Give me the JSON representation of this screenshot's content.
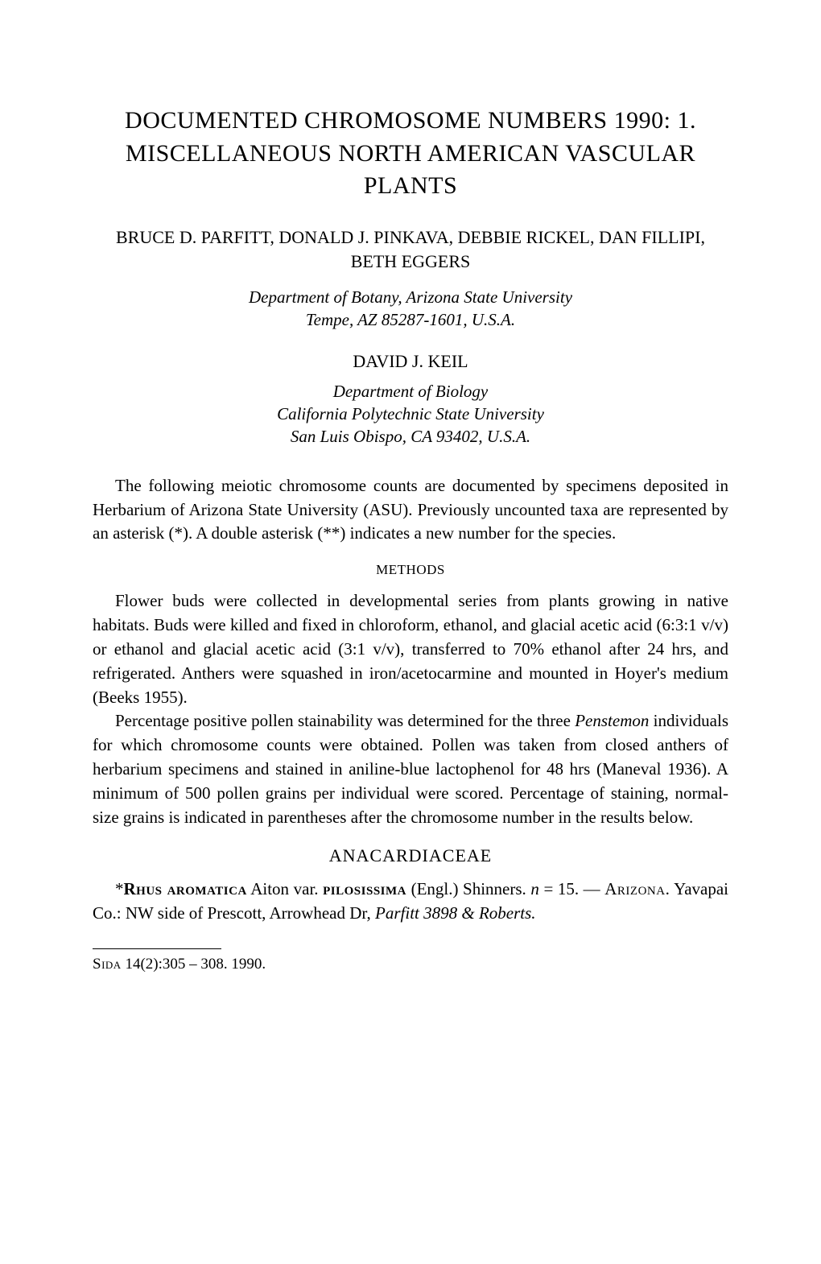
{
  "title": "DOCUMENTED CHROMOSOME NUMBERS 1990: 1. MISCELLANEOUS NORTH AMERICAN VASCULAR PLANTS",
  "authors_primary": "BRUCE D. PARFITT, DONALD J. PINKAVA, DEBBIE RICKEL, DAN FILLIPI, BETH EGGERS",
  "affiliation_primary": "Department of Botany, Arizona State University\nTempe, AZ 85287-1601, U.S.A.",
  "author_secondary": "DAVID J. KEIL",
  "affiliation_secondary": "Department of Biology\nCalifornia Polytechnic State University\nSan Luis Obispo, CA 93402, U.S.A.",
  "intro_paragraph": "The following meiotic chromosome counts are documented by specimens deposited in Herbarium of Arizona State University (ASU). Previously uncounted taxa are represented by an asterisk (*). A double asterisk (**) indicates a new number for the species.",
  "methods_heading": "METHODS",
  "methods_p1": "Flower buds were collected in developmental series from plants growing in native habitats. Buds were killed and fixed in chloroform, ethanol, and glacial acetic acid (6:3:1 v/v) or ethanol and glacial acetic acid (3:1 v/v), transferred to 70% ethanol after 24 hrs, and refrigerated. Anthers were squashed in iron/acetocarmine and mounted in Hoyer's medium (Beeks 1955).",
  "methods_p2_part1": "Percentage positive pollen stainability was determined for the three ",
  "methods_p2_italic": "Penstemon",
  "methods_p2_part2": " individuals for which chromosome counts were obtained. Pollen was taken from closed anthers of herbarium specimens and stained in aniline-blue lactophenol for 48 hrs (Maneval 1936). A minimum of 500 pollen grains per individual were scored. Percentage of staining, normal-size grains is indicated in parentheses after the chromosome number in the results below.",
  "family_heading": "ANACARDIACEAE",
  "species_prefix": "*",
  "species_genus": "Rhus aromatica",
  "species_author": " Aiton var. ",
  "species_variety": "pilosissima",
  "species_variety_author": " (Engl.) Shinners. ",
  "species_n_italic": "n",
  "species_n_value": " = 15. — ",
  "species_location_sc": "Arizona.",
  "species_location": " Yavapai Co.: NW side of Prescott, Arrowhead Dr, ",
  "species_collector": "Parfitt 3898 & Roberts.",
  "footer_sc": "Sida",
  "footer_rest": " 14(2):305 – 308. 1990.",
  "colors": {
    "background": "#ffffff",
    "text": "#000000"
  },
  "typography": {
    "title_fontsize": 30,
    "body_fontsize": 21,
    "heading_fontsize": 17,
    "footer_fontsize": 19,
    "font_family": "Garamond"
  }
}
